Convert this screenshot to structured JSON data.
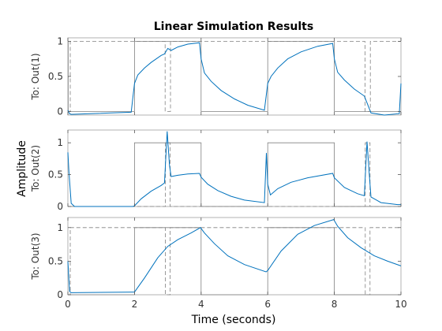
{
  "chart_data": {
    "type": "line",
    "title": "Linear Simulation Results",
    "xlabel": "Time (seconds)",
    "ylabel": "Amplitude",
    "xlim": [
      0,
      10
    ],
    "xticks": [
      "0",
      "2",
      "4",
      "6",
      "8",
      "10"
    ],
    "grid": false,
    "colors": {
      "response": "#0072BD",
      "input": "#808080",
      "frame": "#a0a0a0"
    },
    "axes": [
      {
        "ylabel": "To: Out(1)",
        "ylim": [
          -0.05,
          1.05
        ],
        "yticks": [
          0,
          0.5,
          1
        ],
        "ytick_labels": [
          "0",
          "0.5",
          "1"
        ],
        "input": {
          "x": [
            0,
            0.01,
            0.01,
            2,
            2,
            4,
            4,
            6,
            6,
            8,
            8,
            10
          ],
          "y": [
            1,
            1,
            0,
            0,
            1,
            1,
            0,
            0,
            1,
            1,
            0,
            0
          ]
        },
        "input_dashed": {
          "x": [
            0,
            0.07,
            0.07,
            2.92,
            2.92,
            3.08,
            3.08,
            8.92,
            8.92,
            9.08,
            9.08,
            10
          ],
          "y": [
            0,
            0,
            1,
            1,
            0,
            0,
            1,
            1,
            0,
            0,
            1,
            1
          ]
        },
        "response": {
          "x": [
            0,
            0.05,
            0.1,
            1.9,
            2.0,
            2.1,
            2.3,
            2.5,
            2.8,
            2.9,
            3.0,
            3.1,
            3.3,
            3.6,
            3.95,
            4.0,
            4.1,
            4.3,
            4.6,
            5.0,
            5.4,
            5.9,
            6.0,
            6.1,
            6.3,
            6.6,
            7.0,
            7.5,
            7.95,
            8.0,
            8.1,
            8.3,
            8.6,
            8.9,
            9.0,
            9.1,
            9.5,
            9.95,
            10.0
          ],
          "y": [
            0.02,
            -0.03,
            -0.04,
            -0.01,
            0.4,
            0.52,
            0.62,
            0.7,
            0.8,
            0.82,
            0.9,
            0.87,
            0.92,
            0.96,
            0.98,
            0.75,
            0.55,
            0.43,
            0.3,
            0.18,
            0.09,
            0.02,
            0.4,
            0.5,
            0.62,
            0.75,
            0.85,
            0.93,
            0.97,
            0.75,
            0.56,
            0.45,
            0.32,
            0.22,
            0.1,
            -0.02,
            -0.05,
            -0.03,
            0.4
          ]
        }
      },
      {
        "ylabel": "To: Out(2)",
        "ylim": [
          0,
          1.2
        ],
        "yticks": [
          0,
          0.5,
          1
        ],
        "ytick_labels": [
          "0",
          "0.5",
          "1"
        ],
        "input": {
          "x": [
            0,
            2,
            2,
            4,
            4,
            6,
            6,
            8,
            8,
            10
          ],
          "y": [
            0,
            0,
            1,
            1,
            0,
            0,
            1,
            1,
            0,
            0
          ]
        },
        "input_dashed": {
          "x": [
            0,
            2.93,
            2.93,
            3.07,
            3.07,
            8.93,
            8.93,
            9.07,
            9.07,
            10
          ],
          "y": [
            0,
            0,
            1,
            1,
            0,
            0,
            1,
            1,
            0,
            0
          ]
        },
        "response": {
          "x": [
            0,
            0.03,
            0.1,
            0.2,
            1.95,
            2.0,
            2.2,
            2.5,
            2.8,
            2.9,
            2.98,
            3.05,
            3.1,
            3.3,
            3.6,
            3.95,
            4.0,
            4.2,
            4.5,
            4.9,
            5.3,
            5.9,
            5.96,
            6.0,
            6.08,
            6.3,
            6.7,
            7.2,
            7.95,
            8.0,
            8.3,
            8.7,
            8.9,
            8.98,
            9.05,
            9.1,
            9.4,
            9.9,
            10.0
          ],
          "y": [
            0.85,
            0.55,
            0.05,
            0.0,
            0.0,
            0.01,
            0.12,
            0.24,
            0.33,
            0.37,
            1.18,
            0.65,
            0.47,
            0.49,
            0.51,
            0.52,
            0.46,
            0.35,
            0.25,
            0.16,
            0.1,
            0.06,
            0.84,
            0.35,
            0.18,
            0.28,
            0.38,
            0.45,
            0.52,
            0.45,
            0.3,
            0.2,
            0.17,
            1.02,
            0.5,
            0.15,
            0.06,
            0.03,
            0.03
          ]
        }
      },
      {
        "ylabel": "To: Out(3)",
        "ylim": [
          0,
          1.15
        ],
        "yticks": [
          0,
          0.5,
          1
        ],
        "ytick_labels": [
          "0",
          "0.5",
          "1"
        ],
        "input": {
          "x": [
            0,
            2,
            2,
            4,
            4,
            6,
            6,
            8,
            8,
            10
          ],
          "y": [
            0,
            0,
            1,
            1,
            0,
            0,
            1,
            1,
            0,
            0
          ]
        },
        "input_dashed": {
          "x": [
            0,
            0.07,
            0.07,
            2.93,
            2.93,
            3.07,
            3.07,
            8.93,
            8.93,
            9.07,
            9.07,
            10
          ],
          "y": [
            0,
            0,
            1,
            1,
            0,
            0,
            1,
            1,
            0,
            0,
            1,
            1
          ]
        },
        "response": {
          "x": [
            0,
            0.05,
            0.1,
            1.95,
            2.0,
            2.3,
            2.7,
            3.0,
            3.3,
            3.7,
            3.98,
            4.1,
            4.4,
            4.8,
            5.3,
            5.95,
            6.0,
            6.4,
            6.9,
            7.4,
            7.98,
            8.1,
            8.4,
            8.8,
            9.2,
            9.6,
            10.0
          ],
          "y": [
            0.5,
            0.05,
            0.03,
            0.04,
            0.04,
            0.25,
            0.55,
            0.72,
            0.82,
            0.92,
            1.0,
            0.92,
            0.76,
            0.58,
            0.45,
            0.34,
            0.36,
            0.65,
            0.9,
            1.03,
            1.12,
            1.02,
            0.85,
            0.7,
            0.58,
            0.5,
            0.43
          ]
        }
      }
    ]
  }
}
